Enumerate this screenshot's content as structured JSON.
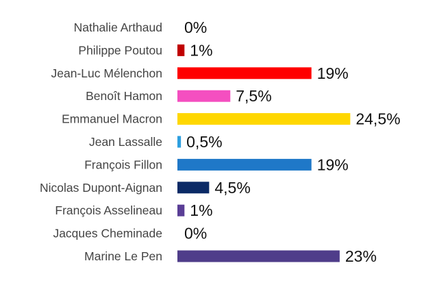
{
  "chart_data": {
    "type": "bar",
    "orientation": "horizontal",
    "categories": [
      "Nathalie Arthaud",
      "Philippe Poutou",
      "Jean-Luc Mélenchon",
      "Benoît Hamon",
      "Emmanuel Macron",
      "Jean Lassalle",
      "François Fillon",
      "Nicolas Dupont-Aignan",
      "François Asselineau",
      "Jacques Cheminade",
      "Marine Le Pen"
    ],
    "values": [
      0,
      1,
      19,
      7.5,
      24.5,
      0.5,
      19,
      4.5,
      1,
      0,
      23
    ],
    "value_labels": [
      "0%",
      "1%",
      "19%",
      "7,5%",
      "24,5%",
      "0,5%",
      "19%",
      "4,5%",
      "1%",
      "0%",
      "23%"
    ],
    "colors": [
      "#b22222",
      "#c00000",
      "#ff0000",
      "#f44fc0",
      "#ffd700",
      "#2e9fdf",
      "#1f78c8",
      "#0b2a66",
      "#5a3e96",
      "#5a3e96",
      "#4f3d8a"
    ],
    "xlim": [
      0,
      24.5
    ],
    "grid": false,
    "axes_visible": false
  }
}
